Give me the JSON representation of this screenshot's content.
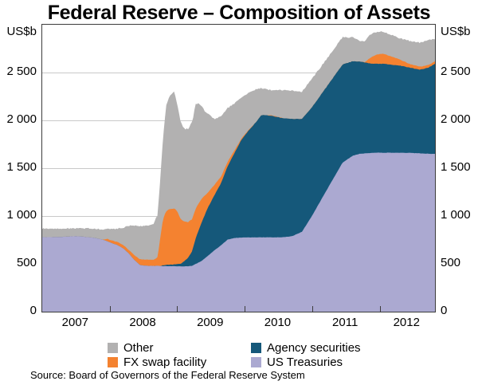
{
  "title": "Federal Reserve – Composition of Assets",
  "y_axis": {
    "unit_label": "US$b",
    "tick_labels": [
      "0",
      "500",
      "1 000",
      "1 500",
      "2 000",
      "2 500"
    ],
    "tick_values": [
      0,
      500,
      1000,
      1500,
      2000,
      2500
    ],
    "max": 3000
  },
  "x_axis": {
    "year_labels": [
      "2007",
      "2008",
      "2009",
      "2010",
      "2011",
      "2012"
    ],
    "year_tick_values": [
      2008,
      2009,
      2010,
      2011,
      2012
    ],
    "start": 2007.0,
    "end": 2012.82
  },
  "legend": {
    "columns": [
      [
        {
          "label": "Other",
          "color": "#b2b1b1"
        },
        {
          "label": "FX swap facility",
          "color": "#f48230"
        }
      ],
      [
        {
          "label": "Agency securities",
          "color": "#15587a"
        },
        {
          "label": "US Treasuries",
          "color": "#aba9d1"
        }
      ]
    ]
  },
  "source": "Source: Board of Governors of the Federal Reserve System",
  "colors": {
    "us_treasuries": "#aba9d1",
    "agency_securities": "#15587a",
    "fx_swap_facility": "#f48230",
    "other": "#b2b1b1",
    "gridline": "#c9c9c9",
    "axis": "#3c3c3c"
  },
  "chart_data": {
    "type": "area",
    "stacked": true,
    "title": "Federal Reserve – Composition of Assets",
    "ylabel": "US$b",
    "ylim": [
      0,
      3000
    ],
    "y_tick_step": 500,
    "xlim": [
      2007.0,
      2012.82
    ],
    "grid": "horizontal",
    "legend_position": "bottom",
    "stack_order_bottom_to_top": [
      "US Treasuries",
      "Agency securities",
      "FX swap facility",
      "Other"
    ],
    "x": [
      2007.0,
      2007.25,
      2007.5,
      2007.75,
      2007.9,
      2007.96,
      2008.05,
      2008.12,
      2008.2,
      2008.28,
      2008.36,
      2008.45,
      2008.55,
      2008.65,
      2008.71,
      2008.75,
      2008.79,
      2008.83,
      2008.87,
      2008.92,
      2008.96,
      2009.0,
      2009.05,
      2009.1,
      2009.16,
      2009.22,
      2009.28,
      2009.36,
      2009.45,
      2009.55,
      2009.65,
      2009.75,
      2009.85,
      2009.95,
      2010.05,
      2010.15,
      2010.25,
      2010.4,
      2010.55,
      2010.7,
      2010.85,
      2011.0,
      2011.15,
      2011.3,
      2011.45,
      2011.6,
      2011.7,
      2011.78,
      2011.84,
      2011.9,
      2011.96,
      2012.05,
      2012.15,
      2012.3,
      2012.45,
      2012.6,
      2012.72,
      2012.82
    ],
    "series": [
      {
        "name": "US Treasuries",
        "color": "#aba9d1",
        "values": [
          778,
          781,
          790,
          775,
          752,
          738,
          712,
          695,
          662,
          610,
          545,
          487,
          479,
          479,
          479,
          477,
          476,
          476,
          476,
          476,
          476,
          475,
          475,
          474,
          474,
          480,
          500,
          530,
          580,
          640,
          695,
          755,
          770,
          775,
          776,
          777,
          777,
          777,
          777,
          788,
          836,
          1005,
          1190,
          1375,
          1558,
          1630,
          1650,
          1655,
          1658,
          1660,
          1663,
          1661,
          1662,
          1661,
          1660,
          1655,
          1651,
          1650
        ]
      },
      {
        "name": "Agency securities",
        "color": "#15587a",
        "values": [
          0,
          0,
          0,
          0,
          0,
          0,
          0,
          0,
          0,
          0,
          0,
          0,
          0,
          0,
          0,
          2,
          8,
          12,
          14,
          15,
          19,
          21,
          26,
          50,
          90,
          150,
          280,
          400,
          500,
          575,
          650,
          770,
          890,
          1020,
          1110,
          1190,
          1280,
          1270,
          1248,
          1228,
          1180,
          1135,
          1098,
          1060,
          1025,
          988,
          965,
          950,
          940,
          930,
          928,
          930,
          922,
          912,
          890,
          875,
          900,
          940
        ]
      },
      {
        "name": "FX swap facility",
        "color": "#f48230",
        "values": [
          0,
          0,
          0,
          0,
          2,
          24,
          28,
          32,
          34,
          38,
          48,
          60,
          65,
          62,
          90,
          300,
          480,
          555,
          580,
          585,
          582,
          555,
          470,
          420,
          372,
          335,
          308,
          250,
          160,
          110,
          68,
          45,
          28,
          14,
          8,
          1,
          0,
          6,
          2,
          0,
          0,
          0,
          0,
          0,
          0,
          0,
          1,
          4,
          45,
          78,
          98,
          106,
          90,
          62,
          38,
          30,
          27,
          26
        ]
      },
      {
        "name": "Other",
        "color": "#b2b1b1",
        "values": [
          90,
          87,
          82,
          94,
          106,
          112,
          124,
          142,
          182,
          248,
          310,
          348,
          358,
          372,
          450,
          610,
          860,
          1080,
          1160,
          1210,
          1222,
          1130,
          1010,
          962,
          980,
          1010,
          1100,
          970,
          830,
          690,
          625,
          560,
          490,
          430,
          392,
          352,
          280,
          262,
          290,
          296,
          284,
          296,
          292,
          288,
          287,
          250,
          218,
          216,
          242,
          242,
          235,
          232,
          226,
          222,
          242,
          252,
          260,
          235
        ]
      }
    ]
  }
}
